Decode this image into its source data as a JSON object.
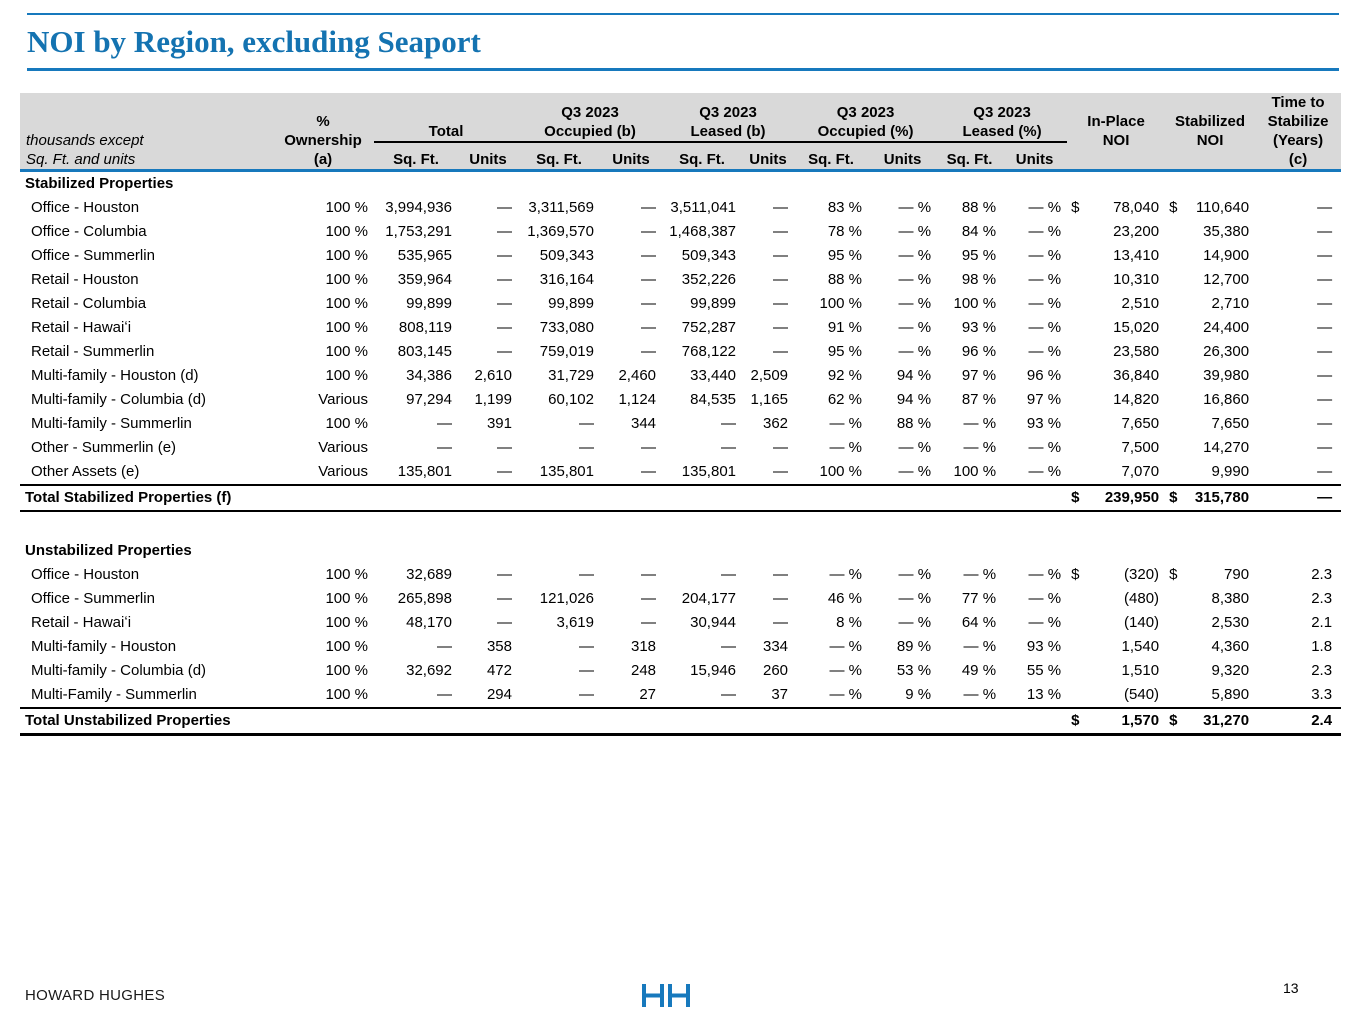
{
  "title": "NOI by Region, excluding Seaport",
  "colors": {
    "accent_blue": "#1779BD",
    "header_gray": "#D9D9D9",
    "text": "#000000"
  },
  "table": {
    "unit_note_line1": "thousands except",
    "unit_note_line2": "Sq. Ft. and units",
    "headers": {
      "ownership": {
        "l1": "%",
        "l2": "Ownership",
        "l3": "(a)"
      },
      "groups": [
        {
          "l1": "Total",
          "l2": ""
        },
        {
          "l1": "Q3 2023",
          "l2": "Occupied (b)"
        },
        {
          "l1": "Q3 2023",
          "l2": "Leased (b)"
        },
        {
          "l1": "Q3 2023",
          "l2": "Occupied (%)"
        },
        {
          "l1": "Q3 2023",
          "l2": "Leased (%)"
        }
      ],
      "sub": {
        "sqft": "Sq. Ft.",
        "units": "Units"
      },
      "inplace": {
        "l1": "In-Place",
        "l2": "NOI"
      },
      "stabilized": {
        "l1": "Stabilized",
        "l2": "NOI"
      },
      "time": {
        "l1": "Time to",
        "l2": "Stabilize",
        "l3": "(Years)",
        "l4": "(c)"
      }
    },
    "sections": [
      {
        "heading": "Stabilized Properties",
        "rows": [
          {
            "label": "Office - Houston",
            "values": [
              "100 %",
              "3,994,936",
              "—",
              "3,311,569",
              "—",
              "3,511,041",
              "—",
              "83 %",
              "— %",
              "88 %",
              "— %"
            ],
            "cur_inplace": "$",
            "inplace": "78,040",
            "cur_stab": "$",
            "stab": "110,640",
            "time": "—"
          },
          {
            "label": "Office - Columbia",
            "values": [
              "100 %",
              "1,753,291",
              "—",
              "1,369,570",
              "—",
              "1,468,387",
              "—",
              "78 %",
              "— %",
              "84 %",
              "— %"
            ],
            "cur_inplace": "",
            "inplace": "23,200",
            "cur_stab": "",
            "stab": "35,380",
            "time": "—"
          },
          {
            "label": "Office - Summerlin",
            "values": [
              "100 %",
              "535,965",
              "—",
              "509,343",
              "—",
              "509,343",
              "—",
              "95 %",
              "— %",
              "95 %",
              "— %"
            ],
            "cur_inplace": "",
            "inplace": "13,410",
            "cur_stab": "",
            "stab": "14,900",
            "time": "—"
          },
          {
            "label": "Retail - Houston",
            "values": [
              "100 %",
              "359,964",
              "—",
              "316,164",
              "—",
              "352,226",
              "—",
              "88 %",
              "— %",
              "98 %",
              "— %"
            ],
            "cur_inplace": "",
            "inplace": "10,310",
            "cur_stab": "",
            "stab": "12,700",
            "time": "—"
          },
          {
            "label": "Retail - Columbia",
            "values": [
              "100 %",
              "99,899",
              "—",
              "99,899",
              "—",
              "99,899",
              "—",
              "100 %",
              "— %",
              "100 %",
              "— %"
            ],
            "cur_inplace": "",
            "inplace": "2,510",
            "cur_stab": "",
            "stab": "2,710",
            "time": "—"
          },
          {
            "label": "Retail - Hawaiʻi",
            "values": [
              "100 %",
              "808,119",
              "—",
              "733,080",
              "—",
              "752,287",
              "—",
              "91 %",
              "— %",
              "93 %",
              "— %"
            ],
            "cur_inplace": "",
            "inplace": "15,020",
            "cur_stab": "",
            "stab": "24,400",
            "time": "—"
          },
          {
            "label": "Retail - Summerlin",
            "values": [
              "100 %",
              "803,145",
              "—",
              "759,019",
              "—",
              "768,122",
              "—",
              "95 %",
              "— %",
              "96 %",
              "— %"
            ],
            "cur_inplace": "",
            "inplace": "23,580",
            "cur_stab": "",
            "stab": "26,300",
            "time": "—"
          },
          {
            "label": "Multi-family - Houston (d)",
            "values": [
              "100 %",
              "34,386",
              "2,610",
              "31,729",
              "2,460",
              "33,440",
              "2,509",
              "92 %",
              "94 %",
              "97 %",
              "96 %"
            ],
            "cur_inplace": "",
            "inplace": "36,840",
            "cur_stab": "",
            "stab": "39,980",
            "time": "—"
          },
          {
            "label": "Multi-family - Columbia (d)",
            "values": [
              "Various",
              "97,294",
              "1,199",
              "60,102",
              "1,124",
              "84,535",
              "1,165",
              "62 %",
              "94 %",
              "87 %",
              "97 %"
            ],
            "cur_inplace": "",
            "inplace": "14,820",
            "cur_stab": "",
            "stab": "16,860",
            "time": "—"
          },
          {
            "label": "Multi-family - Summerlin",
            "values": [
              "100 %",
              "—",
              "391",
              "—",
              "344",
              "—",
              "362",
              "— %",
              "88 %",
              "— %",
              "93 %"
            ],
            "cur_inplace": "",
            "inplace": "7,650",
            "cur_stab": "",
            "stab": "7,650",
            "time": "—"
          },
          {
            "label": "Other - Summerlin (e)",
            "values": [
              "Various",
              "—",
              "—",
              "—",
              "—",
              "—",
              "—",
              "— %",
              "— %",
              "— %",
              "— %"
            ],
            "cur_inplace": "",
            "inplace": "7,500",
            "cur_stab": "",
            "stab": "14,270",
            "time": "—"
          },
          {
            "label": "Other Assets (e)",
            "values": [
              "Various",
              "135,801",
              "—",
              "135,801",
              "—",
              "135,801",
              "—",
              "100 %",
              "— %",
              "100 %",
              "— %"
            ],
            "cur_inplace": "",
            "inplace": "7,070",
            "cur_stab": "",
            "stab": "9,990",
            "time": "—"
          }
        ],
        "total": {
          "label": "Total Stabilized Properties (f)",
          "cur_inplace": "$",
          "inplace": "239,950",
          "cur_stab": "$",
          "stab": "315,780",
          "time": "—"
        }
      },
      {
        "heading": "Unstabilized Properties",
        "rows": [
          {
            "label": "Office - Houston",
            "values": [
              "100 %",
              "32,689",
              "—",
              "—",
              "—",
              "—",
              "—",
              "— %",
              "— %",
              "— %",
              "— %"
            ],
            "cur_inplace": "$",
            "inplace": "(320)",
            "cur_stab": "$",
            "stab": "790",
            "time": "2.3"
          },
          {
            "label": "Office - Summerlin",
            "values": [
              "100 %",
              "265,898",
              "—",
              "121,026",
              "—",
              "204,177",
              "—",
              "46 %",
              "— %",
              "77 %",
              "— %"
            ],
            "cur_inplace": "",
            "inplace": "(480)",
            "cur_stab": "",
            "stab": "8,380",
            "time": "2.3"
          },
          {
            "label": "Retail - Hawaiʻi",
            "values": [
              "100 %",
              "48,170",
              "—",
              "3,619",
              "—",
              "30,944",
              "—",
              "8 %",
              "— %",
              "64 %",
              "— %"
            ],
            "cur_inplace": "",
            "inplace": "(140)",
            "cur_stab": "",
            "stab": "2,530",
            "time": "2.1"
          },
          {
            "label": "Multi-family - Houston",
            "values": [
              "100 %",
              "—",
              "358",
              "—",
              "318",
              "—",
              "334",
              "— %",
              "89 %",
              "— %",
              "93 %"
            ],
            "cur_inplace": "",
            "inplace": "1,540",
            "cur_stab": "",
            "stab": "4,360",
            "time": "1.8"
          },
          {
            "label": "Multi-family - Columbia (d)",
            "values": [
              "100 %",
              "32,692",
              "472",
              "—",
              "248",
              "15,946",
              "260",
              "— %",
              "53 %",
              "49 %",
              "55 %"
            ],
            "cur_inplace": "",
            "inplace": "1,510",
            "cur_stab": "",
            "stab": "9,320",
            "time": "2.3"
          },
          {
            "label": "Multi-Family - Summerlin",
            "values": [
              "100 %",
              "—",
              "294",
              "—",
              "27",
              "—",
              "37",
              "— %",
              "9 %",
              "— %",
              "13 %"
            ],
            "cur_inplace": "",
            "inplace": "(540)",
            "cur_stab": "",
            "stab": "5,890",
            "time": "3.3"
          }
        ],
        "total": {
          "label": "Total Unstabilized Properties",
          "cur_inplace": "$",
          "inplace": "1,570",
          "cur_stab": "$",
          "stab": "31,270",
          "time": "2.4"
        }
      }
    ]
  },
  "footer": {
    "company": "HOWARD HUGHES",
    "page_number": "13",
    "logo": "HH monogram"
  }
}
